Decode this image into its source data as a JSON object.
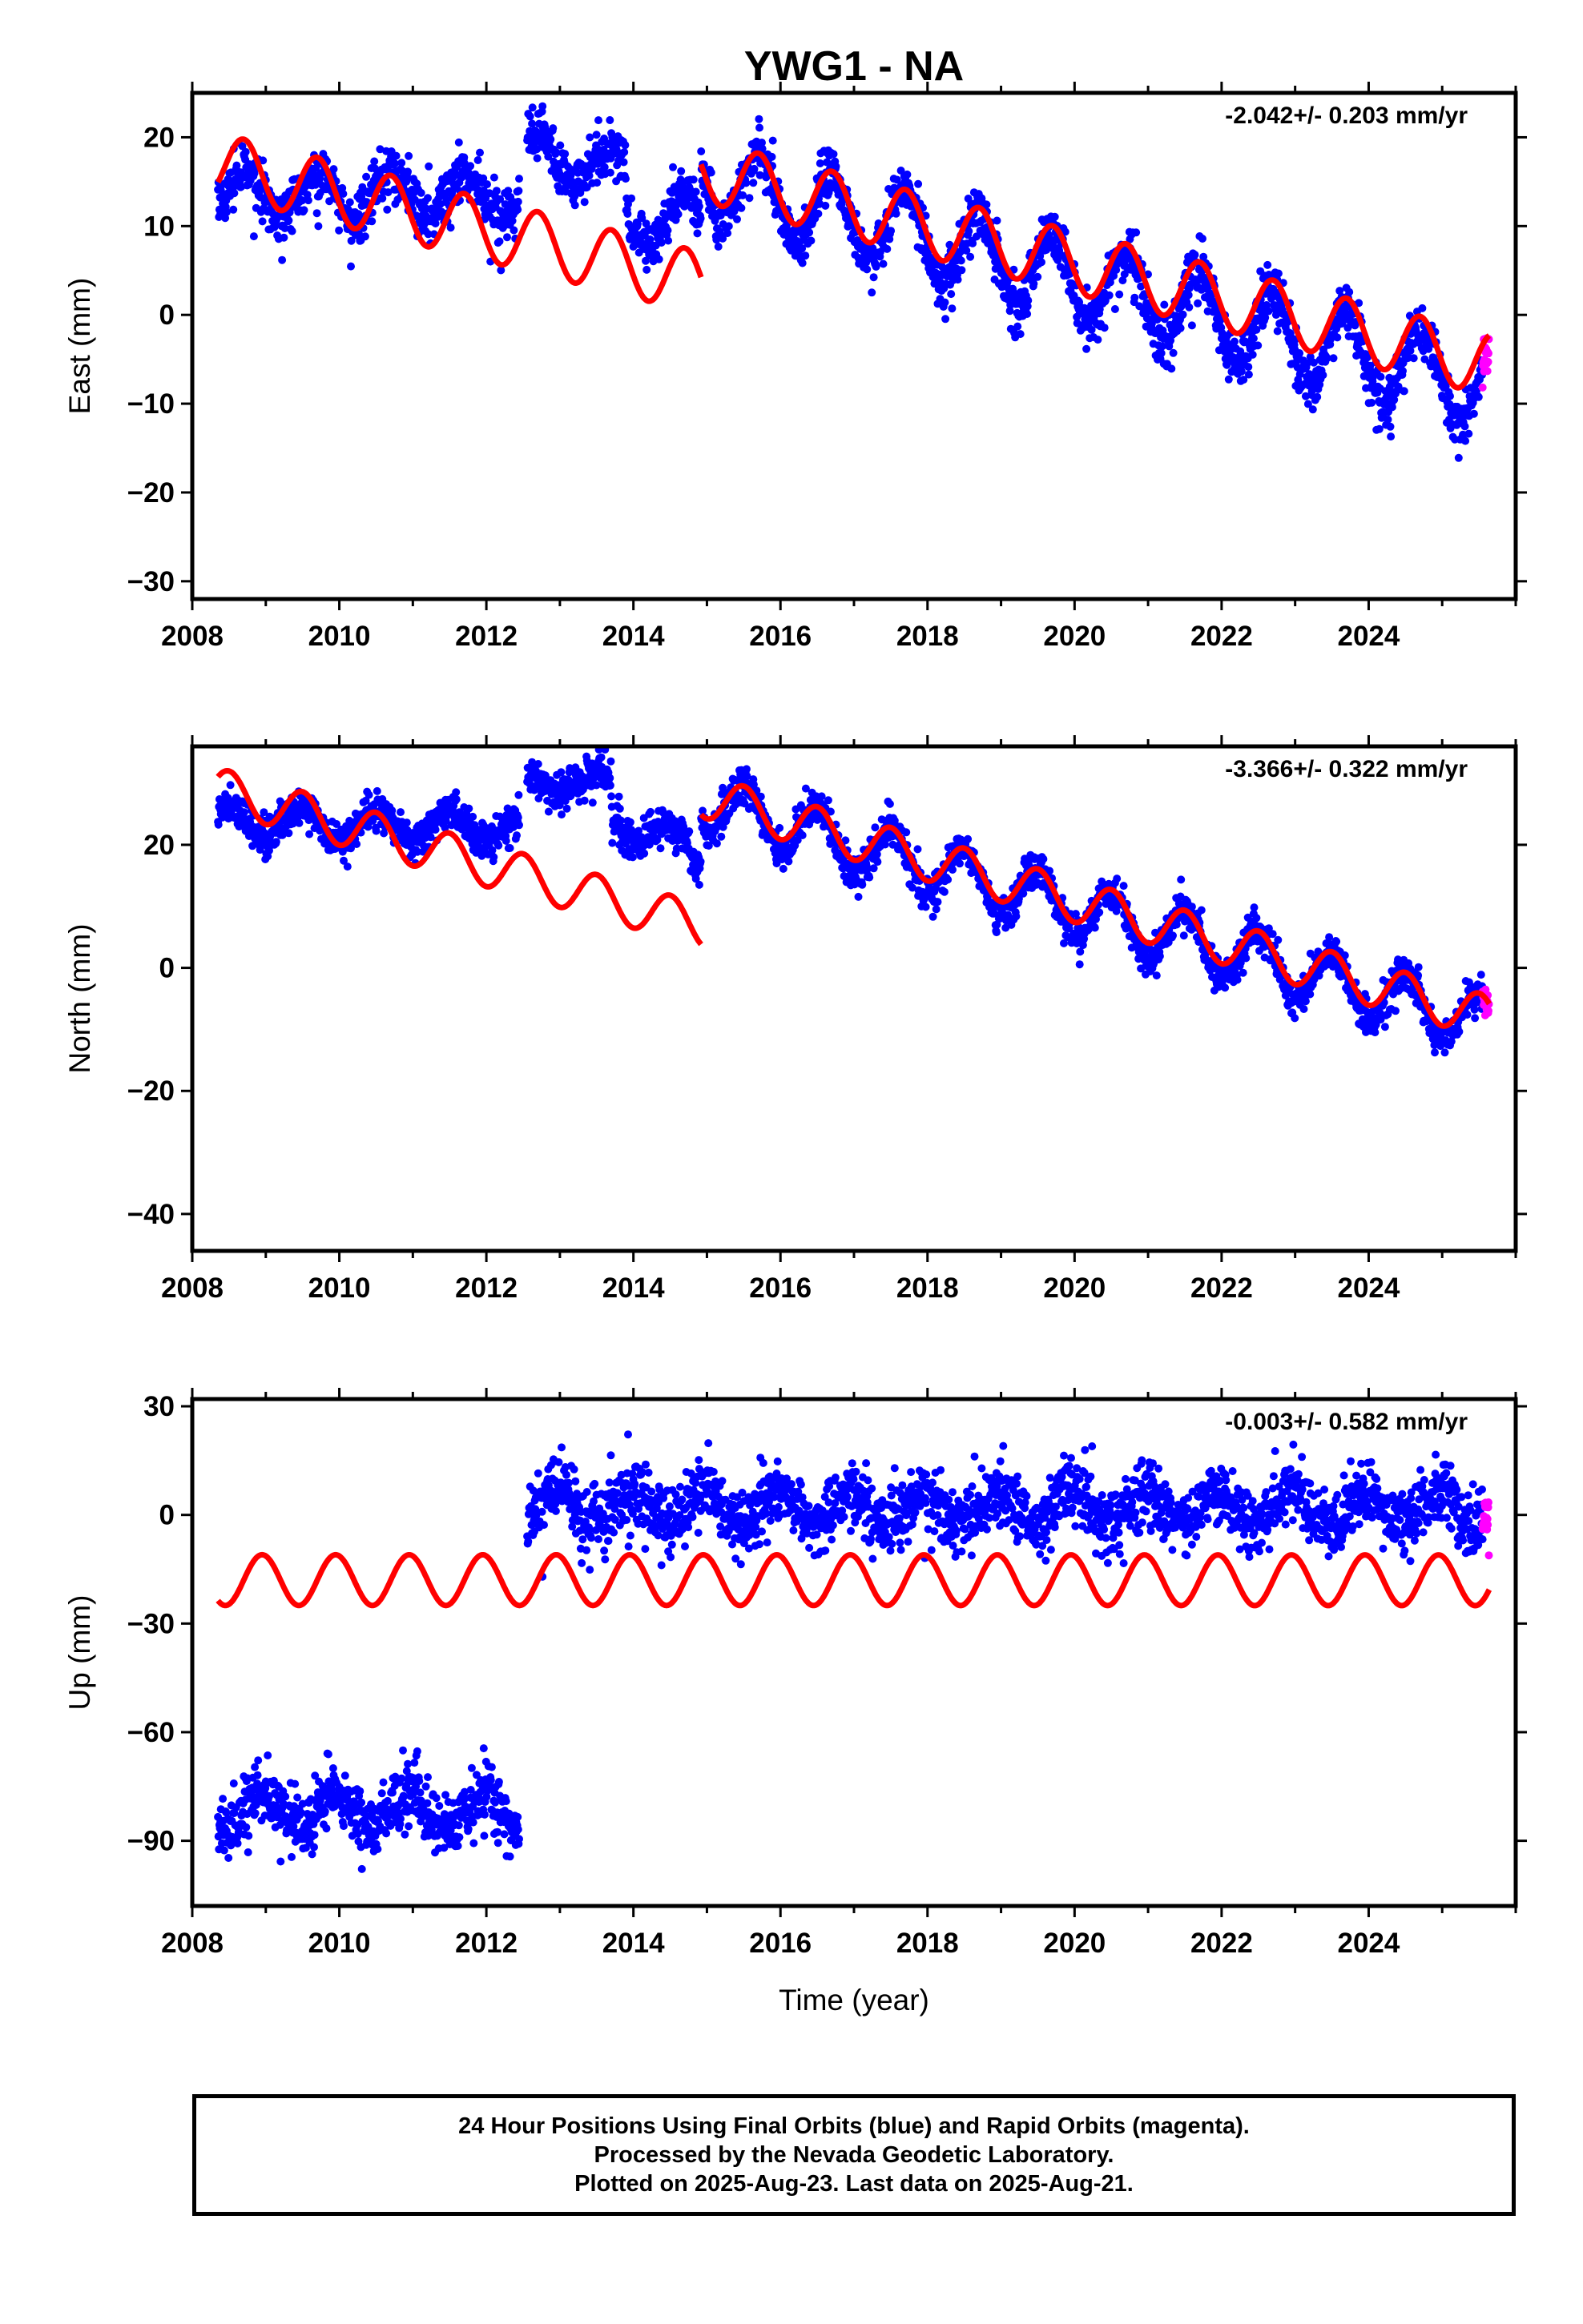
{
  "chart_data": {
    "type": "scatter",
    "title": "YWG1 - NA",
    "xlabel": "Time (year)",
    "xlim": [
      2008,
      2026
    ],
    "x_ticks": [
      2008,
      2010,
      2012,
      2014,
      2016,
      2018,
      2020,
      2022,
      2024
    ],
    "data_start": 2008.35,
    "data_end": 2025.64,
    "gap": [
      2012.45,
      2012.55
    ],
    "colors": {
      "final": "#0000ff",
      "rapid": "#ff00ff",
      "model": "#ff0000"
    },
    "panels": [
      {
        "name": "east",
        "ylabel": "East (mm)",
        "rate": "-2.042+/- 0.203 mm/yr",
        "ylim": [
          -32,
          25
        ],
        "y_ticks": [
          20,
          10,
          0,
          -10,
          -20,
          -30
        ],
        "model": {
          "segments": [
            {
              "start": 2008.35,
              "end": 2014.92,
              "offset": 17.0,
              "trend": -2.042,
              "amplitude": 3.5,
              "phase": 0.45
            },
            {
              "start": 2014.92,
              "end": 2025.64,
              "offset": 16.3,
              "trend": -2.042,
              "amplitude": 3.5,
              "phase": 0.45
            }
          ]
        },
        "data": {
          "noise": 1.5,
          "segments": [
            {
              "start": 2008.35,
              "end": 2012.45,
              "offset": 13.5,
              "trend": 0.0,
              "amplitude": 2.5,
              "phase": 0.45
            },
            {
              "start": 2012.55,
              "end": 2013.9,
              "offset": 18.0,
              "trend": -1.2,
              "amplitude": 2.5,
              "phase": 0.45
            },
            {
              "start": 2013.9,
              "end": 2014.92,
              "offset": 11.0,
              "trend": -0.3,
              "amplitude": 2.5,
              "phase": 0.45
            },
            {
              "start": 2014.92,
              "end": 2025.64,
              "offset": 15.5,
              "trend": -2.25,
              "amplitude": 4.5,
              "phase": 0.45
            }
          ]
        }
      },
      {
        "name": "north",
        "ylabel": "North (mm)",
        "rate": "-3.366+/- 0.322 mm/yr",
        "ylim": [
          -46,
          36
        ],
        "y_ticks": [
          20,
          0,
          -20,
          -40
        ],
        "model": {
          "segments": [
            {
              "start": 2008.35,
              "end": 2014.92,
              "offset": 29.0,
              "trend": -3.366,
              "amplitude": 3.5,
              "phase": 0.25
            },
            {
              "start": 2014.92,
              "end": 2025.64,
              "offset": 28.0,
              "trend": -3.366,
              "amplitude": 3.5,
              "phase": 0.25
            }
          ]
        },
        "data": {
          "noise": 1.5,
          "segments": [
            {
              "start": 2008.35,
              "end": 2012.45,
              "offset": 23.5,
              "trend": -0.2,
              "amplitude": 2.5,
              "phase": 0.25
            },
            {
              "start": 2012.55,
              "end": 2013.7,
              "offset": 30.0,
              "trend": 0.0,
              "amplitude": 1.5,
              "phase": 0.25
            },
            {
              "start": 2013.7,
              "end": 2014.92,
              "offset": 24.5,
              "trend": -5.0,
              "amplitude": 2.5,
              "phase": 0.25
            },
            {
              "start": 2014.92,
              "end": 2025.64,
              "offset": 27.0,
              "trend": -3.4,
              "amplitude": 4.5,
              "phase": 0.25
            }
          ]
        }
      },
      {
        "name": "up",
        "ylabel": "Up (mm)",
        "rate": "-0.003+/- 0.582 mm/yr",
        "ylim": [
          -108,
          32
        ],
        "y_ticks": [
          30,
          0,
          -30,
          -60,
          -90
        ],
        "model": {
          "segments": [
            {
              "start": 2008.35,
              "end": 2025.64,
              "offset": -18.0,
              "trend": -0.003,
              "amplitude": 7.0,
              "phase": 0.7
            }
          ]
        },
        "data": {
          "noise": 4.5,
          "segments": [
            {
              "start": 2008.35,
              "end": 2012.45,
              "offset": -82.0,
              "trend": 0.0,
              "amplitude": 5.0,
              "phase": 0.7
            },
            {
              "start": 2012.55,
              "end": 2025.64,
              "offset": 2.0,
              "trend": 0.0,
              "amplitude": 5.0,
              "phase": 0.7
            }
          ]
        }
      }
    ]
  },
  "footer": {
    "line1": "24 Hour Positions Using Final Orbits (blue) and Rapid Orbits (magenta).",
    "line2": "Processed by the Nevada Geodetic Laboratory.",
    "line3": "Plotted on 2025-Aug-23. Last data on 2025-Aug-21."
  }
}
